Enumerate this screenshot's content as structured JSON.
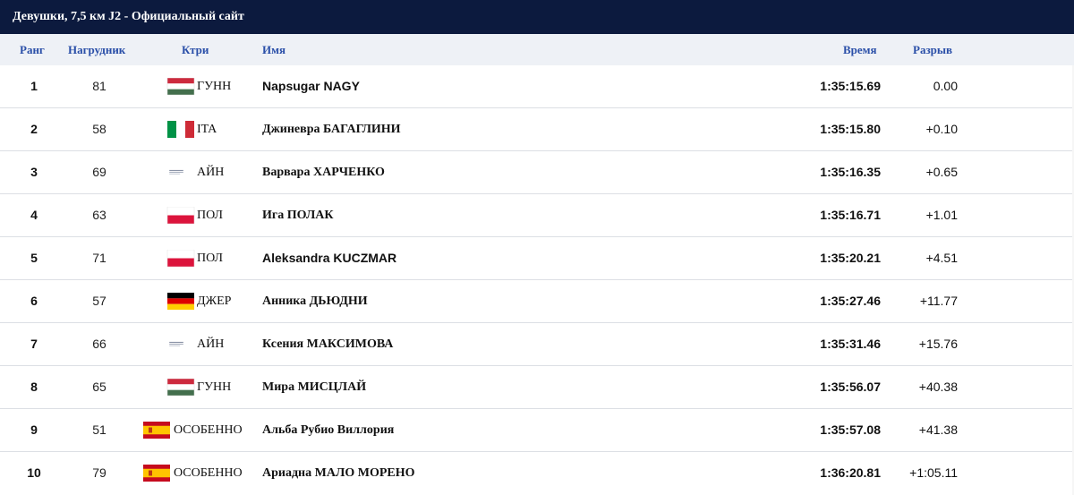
{
  "window": {
    "title": "Девушки, 7,5 км J2 - Официальный сайт"
  },
  "table": {
    "headers": {
      "rank": "Ранг",
      "bib": "Нагрудник",
      "country": "Ктри",
      "name": "Имя",
      "time": "Время",
      "gap": "Разрыв"
    },
    "rows": [
      {
        "rank": "1",
        "bib": "81",
        "flag": "hungary-flag",
        "country": "ГУНН",
        "name": "Napsugar NAGY",
        "time": "1:35:15.69",
        "gap": "0.00"
      },
      {
        "rank": "2",
        "bib": "58",
        "flag": "italy-flag",
        "country": "ITA",
        "name": "Джиневра БАГАГЛИНИ",
        "time": "1:35:15.80",
        "gap": "+0.10"
      },
      {
        "rank": "3",
        "bib": "69",
        "flag": "european-biathlon-logo",
        "country": "АЙН",
        "name": "Варвара ХАРЧЕНКО",
        "time": "1:35:16.35",
        "gap": "+0.65"
      },
      {
        "rank": "4",
        "bib": "63",
        "flag": "poland-flag",
        "country": "ПОЛ",
        "name": "Ига ПОЛАК",
        "time": "1:35:16.71",
        "gap": "+1.01"
      },
      {
        "rank": "5",
        "bib": "71",
        "flag": "poland-flag",
        "country": "ПОЛ",
        "name": "Aleksandra KUCZMAR",
        "time": "1:35:20.21",
        "gap": "+4.51"
      },
      {
        "rank": "6",
        "bib": "57",
        "flag": "germany-flag",
        "country": "ДЖЕР",
        "name": "Анника ДЬЮДНИ",
        "time": "1:35:27.46",
        "gap": "+11.77"
      },
      {
        "rank": "7",
        "bib": "66",
        "flag": "european-biathlon-logo",
        "country": "АЙН",
        "name": "Ксения МАКСИМОВА",
        "time": "1:35:31.46",
        "gap": "+15.76"
      },
      {
        "rank": "8",
        "bib": "65",
        "flag": "hungary-flag",
        "country": "ГУНН",
        "name": "Мира МИСЦЛАЙ",
        "time": "1:35:56.07",
        "gap": "+40.38"
      },
      {
        "rank": "9",
        "bib": "51",
        "flag": "spain-flag",
        "country": "ОСОБЕННО",
        "name": "Альба Рубио Виллория",
        "time": "1:35:57.08",
        "gap": "+41.38"
      },
      {
        "rank": "10",
        "bib": "79",
        "flag": "spain-flag",
        "country": "ОСОБЕННО",
        "name": "Ариадна МАЛО МОРЕНО",
        "time": "1:36:20.81",
        "gap": "+1:05.11"
      }
    ]
  },
  "colors": {
    "titlebar": "#0c1a3e",
    "header_text": "#2a4fa8"
  }
}
